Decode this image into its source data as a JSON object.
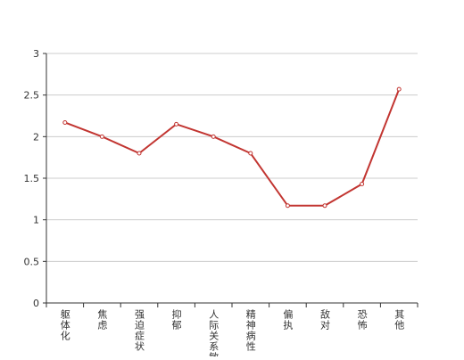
{
  "chart_data": {
    "type": "line",
    "categories": [
      "躯体化",
      "焦虑",
      "强迫症状",
      "抑郁",
      "人际关系敏感",
      "精神病性",
      "偏执",
      "敌对",
      "恐怖",
      "其他"
    ],
    "series": [
      {
        "color": "#c23531",
        "values": [
          2.17,
          2.0,
          1.8,
          2.15,
          2.0,
          1.8,
          1.17,
          1.17,
          1.43,
          2.57
        ]
      }
    ],
    "ylim": [
      0,
      3
    ],
    "yticks": [
      0,
      0.5,
      1,
      1.5,
      2,
      2.5,
      3
    ],
    "grid": true
  }
}
